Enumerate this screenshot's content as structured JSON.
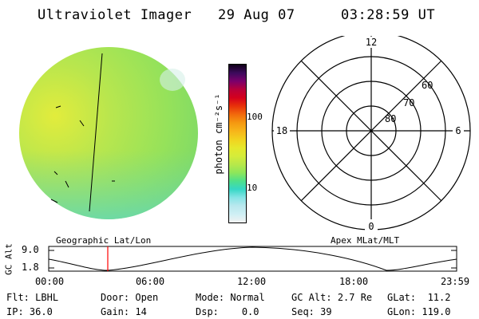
{
  "header": {
    "instrument": "Ultraviolet Imager",
    "date": "29 Aug 07",
    "time": "03:28:59 UT"
  },
  "colorbar": {
    "unit_label": "photon cm⁻²s⁻¹",
    "ticks": [
      "100",
      "10"
    ],
    "colors": [
      "#f2f2f2",
      "#cfeff4",
      "#b9e8ee",
      "#86e4e6",
      "#35d7c5",
      "#4fe08a",
      "#8fe65a",
      "#b7e84a",
      "#d5ec3a",
      "#e6e82c",
      "#f2d21f",
      "#f7b51a",
      "#f59810",
      "#f26a0c",
      "#e8320a",
      "#d5001c",
      "#b8003a",
      "#7b006c",
      "#3c0a5c",
      "#100018"
    ]
  },
  "polar_grid": {
    "lat_labels": [
      "80",
      "70",
      "60"
    ],
    "mlt_labels": {
      "top": "12",
      "left": "18",
      "right": "6",
      "bottom": "0"
    }
  },
  "orbit_plot": {
    "left_caption": "Geographic Lat/Lon",
    "right_caption": "Apex MLat/MLT",
    "ylabel": "GC Alt",
    "y_ticks": [
      "9.0",
      "1.8"
    ],
    "x_ticks": [
      "00:00",
      "06:00",
      "12:00",
      "18:00",
      "23:59"
    ],
    "marker_time": "03:28:59",
    "marker_color": "#ff0000"
  },
  "status": [
    {
      "label": "Flt:",
      "value": "LBHL"
    },
    {
      "label": "Door:",
      "value": "Open"
    },
    {
      "label": "Mode:",
      "value": "Normal"
    },
    {
      "label": "GC Alt:",
      "value": "2.7 Re"
    },
    {
      "label": "GLat:",
      "value": "11.2"
    },
    {
      "label": "IP:",
      "value": "36.0"
    },
    {
      "label": "Gain:",
      "value": "14"
    },
    {
      "label": "Dsp:",
      "value": "0.0"
    },
    {
      "label": "Seq:",
      "value": "39"
    },
    {
      "label": "GLon:",
      "value": "119.0"
    }
  ]
}
